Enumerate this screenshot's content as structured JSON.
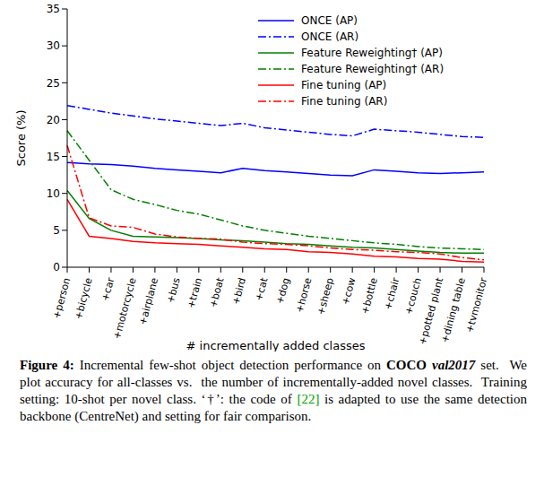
{
  "chart_data": {
    "type": "line",
    "x_label": "# incrementally added classes",
    "y_label": "Score (%)",
    "categories": [
      "+person",
      "+bicycle",
      "+car",
      "+motorcycle",
      "+airplane",
      "+bus",
      "+train",
      "+boat",
      "+bird",
      "+cat",
      "+dog",
      "+horse",
      "+sheep",
      "+cow",
      "+bottle",
      "+chair",
      "+couch",
      "+potted plant",
      "+dining table",
      "+tvmonitor"
    ],
    "series": [
      {
        "name": "ONCE (AP)",
        "color": "#0000ff",
        "line_style": "solid",
        "values": [
          14.2,
          14.0,
          13.9,
          13.7,
          13.4,
          13.2,
          13.0,
          12.8,
          13.4,
          13.1,
          12.9,
          12.7,
          12.5,
          12.4,
          13.2,
          13.0,
          12.8,
          12.7,
          12.8,
          12.9
        ]
      },
      {
        "name": "ONCE (AR)",
        "color": "#0000ff",
        "line_style": "dashdot",
        "values": [
          21.9,
          21.4,
          20.9,
          20.5,
          20.1,
          19.8,
          19.5,
          19.2,
          19.5,
          18.9,
          18.6,
          18.3,
          18.0,
          17.8,
          18.7,
          18.5,
          18.3,
          18.0,
          17.7,
          17.6
        ]
      },
      {
        "name": "Feature Reweighting† (AP)",
        "color": "#008000",
        "line_style": "solid",
        "values": [
          10.4,
          6.6,
          5.0,
          4.2,
          4.1,
          4.0,
          3.9,
          3.7,
          3.6,
          3.4,
          3.2,
          3.1,
          2.9,
          2.7,
          2.6,
          2.4,
          2.2,
          2.0,
          1.9,
          1.9
        ]
      },
      {
        "name": "Feature Reweighting† (AR)",
        "color": "#008000",
        "line_style": "dashdot",
        "values": [
          18.5,
          14.5,
          10.5,
          9.2,
          8.5,
          7.7,
          7.2,
          6.4,
          5.6,
          5.0,
          4.6,
          4.2,
          3.9,
          3.6,
          3.3,
          3.1,
          2.8,
          2.6,
          2.5,
          2.4
        ]
      },
      {
        "name": "Fine tuning (AP)",
        "color": "#ff0000",
        "line_style": "solid",
        "values": [
          9.2,
          4.2,
          3.9,
          3.5,
          3.3,
          3.2,
          3.1,
          2.9,
          2.7,
          2.5,
          2.4,
          2.1,
          2.0,
          1.8,
          1.5,
          1.4,
          1.2,
          1.1,
          0.8,
          0.7
        ]
      },
      {
        "name": "Fine tuning (AR)",
        "color": "#ff0000",
        "line_style": "dashdot",
        "values": [
          16.5,
          6.7,
          5.6,
          5.4,
          4.5,
          4.1,
          3.9,
          3.8,
          3.4,
          3.2,
          3.1,
          2.9,
          2.6,
          2.4,
          2.3,
          2.1,
          2.0,
          1.8,
          1.3,
          1.0
        ]
      }
    ],
    "ylim": [
      0,
      35
    ],
    "yticks": [
      0,
      5,
      10,
      15,
      20,
      25,
      30,
      35
    ],
    "grid": false,
    "legend": "upper right",
    "caption": [
      "Figure 4:",
      " Incremental few-shot object detection performance on ",
      "COCO",
      " ",
      "val2017",
      " set.  We plot accuracy for all-classes vs.  the number of incrementally-added novel classes.  Training setting: 10-shot per novel class. ",
      "‘†’",
      ": the code of ",
      "[22]",
      " is adapted to use the same detection backbone (CentreNet) and setting for fair comparison."
    ]
  }
}
